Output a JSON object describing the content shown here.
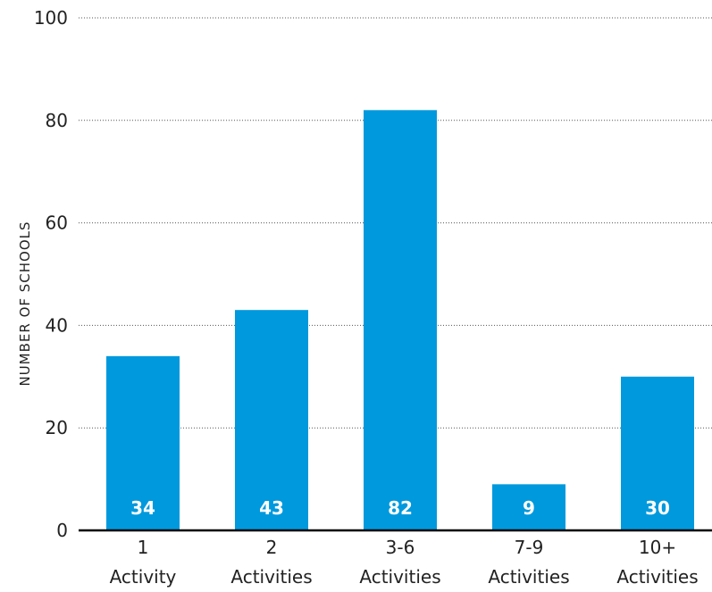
{
  "chart_data": {
    "type": "bar",
    "title": "",
    "xlabel": "",
    "ylabel": "NUMBER OF SCHOOLS",
    "categories": [
      [
        "1",
        "Activity"
      ],
      [
        "2",
        "Activities"
      ],
      [
        "3-6",
        "Activities"
      ],
      [
        "7-9",
        "Activities"
      ],
      [
        "10+",
        "Activities"
      ]
    ],
    "values": [
      34,
      43,
      82,
      9,
      30
    ],
    "data_labels": [
      "34",
      "43",
      "82",
      "9",
      "30"
    ],
    "ylim": [
      0,
      100
    ],
    "yticks": [
      0,
      20,
      40,
      60,
      80,
      100
    ],
    "grid": true,
    "legend": "none",
    "bar_color": "#0099dd"
  }
}
